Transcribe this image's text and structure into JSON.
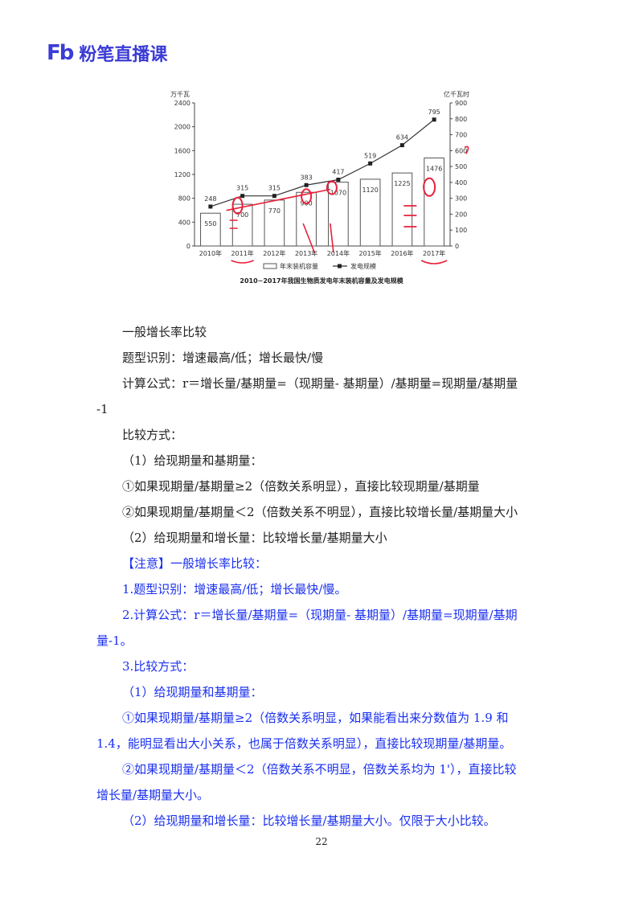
{
  "header": {
    "logo_mark": "Fb",
    "logo_text": "粉笔直播课"
  },
  "chart_data": {
    "type": "bar",
    "title": "2010~2017年我国生物质发电年末装机容量及发电规模",
    "left_axis_label": "万千瓦",
    "right_axis_label": "亿千瓦时",
    "categories": [
      "2010年",
      "2011年",
      "2012年",
      "2013年",
      "2014年",
      "2015年",
      "2016年",
      "2017年"
    ],
    "left_ylim": [
      0,
      2400
    ],
    "left_ticks": [
      "0",
      "400",
      "800",
      "1200",
      "1600",
      "2000",
      "2400"
    ],
    "right_ylim": [
      0,
      900
    ],
    "right_ticks": [
      "0",
      "100",
      "200",
      "300",
      "400",
      "500",
      "600",
      "700",
      "800",
      "900"
    ],
    "series": [
      {
        "name": "年末装机容量",
        "type": "bar",
        "axis": "left",
        "values": [
          550,
          700,
          770,
          900,
          1070,
          1120,
          1225,
          1476
        ]
      },
      {
        "name": "发电规模",
        "type": "line",
        "axis": "right",
        "values": [
          248,
          315,
          315,
          383,
          417,
          519,
          634,
          795
        ]
      }
    ],
    "legend": [
      "年末装机容量",
      "发电规模"
    ],
    "legend_position": "bottom"
  },
  "content": {
    "l1": "一般增长率比较",
    "l2": "题型识别：增速最高/低；增长最快/慢",
    "l3a": "计算公式：r＝增长量/基期量=（现期量- 基期量）/基期量=现期量/基期量",
    "l3b": "-1",
    "l4": "比较方式：",
    "l5": "（1）给现期量和基期量：",
    "l6": "①如果现期量/基期量≥2（倍数关系明显），直接比较现期量/基期量",
    "l7": "②如果现期量/基期量＜2（倍数关系不明显），直接比较增长量/基期量大小",
    "l8": "（2）给现期量和增长量：比较增长量/基期量大小",
    "b1": "【注意】一般增长率比较：",
    "b2": "1.题型识别：增速最高/低；增长最快/慢。",
    "b3a": "2.计算公式：r＝增长量/基期量=（现期量- 基期量）/基期量=现期量/基期",
    "b3b": "量-1。",
    "b4": "3.比较方式：",
    "b5": "（1）给现期量和基期量：",
    "b6a": "①如果现期量/基期量≥2（倍数关系明显，如果能看出来分数值为 1.9 和",
    "b6b": "1.4，能明显看出大小关系，也属于倍数关系明显），直接比较现期量/基期量。",
    "b7a": "②如果现期量/基期量＜2（倍数关系不明显，倍数关系均为 1'），直接比较",
    "b7b": "增长量/基期量大小。",
    "b8": "（2）给现期量和增长量：比较增长量/基期量大小。仅限于大小比较。"
  },
  "footer": {
    "page_number": "22"
  },
  "colors": {
    "brand": "#3b3bd6",
    "note_text": "#1a2ff0",
    "annotation": "#e8203a"
  }
}
